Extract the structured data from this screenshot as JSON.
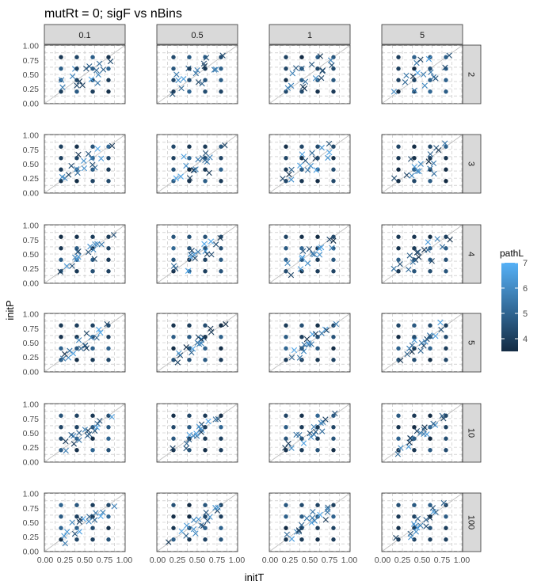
{
  "chart_data": {
    "type": "scatter",
    "title": "mutRt = 0; sigF vs nBins",
    "xlabel": "initT",
    "ylabel": "initP",
    "xlim": [
      0,
      1
    ],
    "ylim": [
      0,
      1
    ],
    "x_ticks": [
      "0.00",
      "0.25",
      "0.50",
      "0.75",
      "1.00"
    ],
    "y_ticks": [
      "0.00",
      "0.25",
      "0.50",
      "0.75",
      "1.00"
    ],
    "grid": true,
    "facet_columns_var": "sigF",
    "facet_rows_var": "nBins",
    "facet_columns": [
      "0.1",
      "0.5",
      "1",
      "5"
    ],
    "facet_rows": [
      "2",
      "3",
      "4",
      "5",
      "10",
      "100"
    ],
    "grid_start_values": [
      0.2,
      0.4,
      0.6,
      0.8
    ],
    "start_point_color": "#1b3a57",
    "reference_line": "y = x",
    "reference_line_color": "#bdbdbd",
    "legend": {
      "title": "pathL",
      "min": 3.5,
      "max": 7,
      "ticks": [
        4,
        5,
        6,
        7
      ],
      "low_color": "#132b43",
      "high_color": "#56b1f7",
      "position": "right"
    },
    "start_marker": "circle",
    "end_marker": "cross"
  },
  "strip_bg": "#d9d9d9",
  "panel_border": "#333333"
}
